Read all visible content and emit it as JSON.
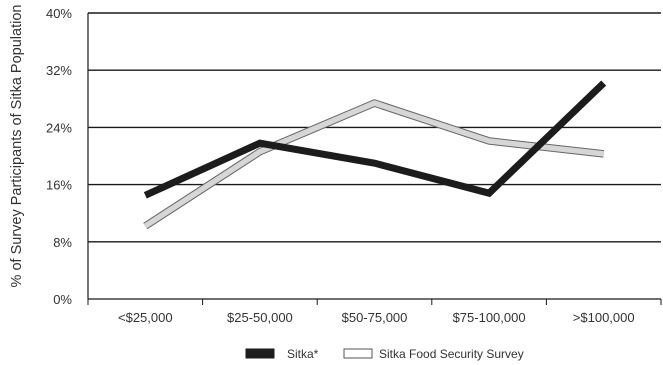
{
  "chart_data": {
    "type": "line",
    "ylabel": "% of Survey Participants of Sitka Population",
    "xlabel": "",
    "categories": [
      "<$25,000",
      "$25-50,000",
      "$50-75,000",
      "$75-100,000",
      ">$100,000"
    ],
    "yticks": [
      "0%",
      "8%",
      "16%",
      "24%",
      "32%",
      "40%"
    ],
    "ylim": [
      0,
      40
    ],
    "grid": "horizontal",
    "legend_position": "bottom-center",
    "series": [
      {
        "name": "Sitka*",
        "values": [
          14.5,
          21.8,
          19.0,
          14.8,
          30.2
        ],
        "color": "#1c1c1c",
        "fill": "#1c1c1c"
      },
      {
        "name": "Sitka Food Security Survey",
        "values": [
          10.2,
          20.6,
          27.4,
          22.1,
          20.3
        ],
        "color": "#d6d6d6",
        "fill": "#ffffff"
      }
    ]
  }
}
